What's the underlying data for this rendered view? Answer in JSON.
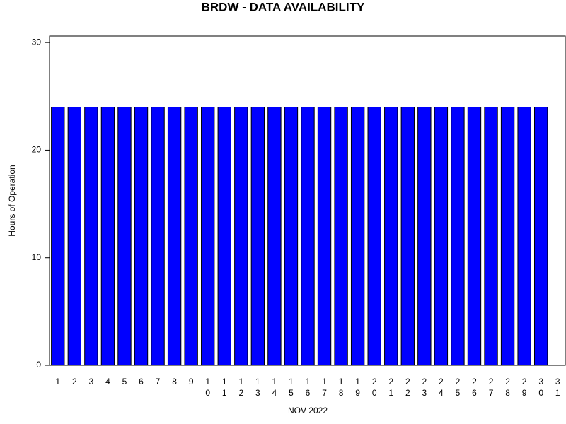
{
  "chart_data": {
    "type": "bar",
    "title": "BRDW - DATA AVAILABILITY",
    "x_label": "NOV 2022",
    "y_label": "Hours of Operation",
    "categories": [
      "1",
      "2",
      "3",
      "4",
      "5",
      "6",
      "7",
      "8",
      "9",
      "10",
      "11",
      "12",
      "13",
      "14",
      "15",
      "16",
      "17",
      "18",
      "19",
      "20",
      "21",
      "22",
      "23",
      "24",
      "25",
      "26",
      "27",
      "28",
      "29",
      "30",
      "31"
    ],
    "values": [
      24,
      24,
      24,
      24,
      24,
      24,
      24,
      24,
      24,
      24,
      24,
      24,
      24,
      24,
      24,
      24,
      24,
      24,
      24,
      24,
      24,
      24,
      24,
      24,
      24,
      24,
      24,
      24,
      24,
      24,
      null
    ],
    "color": "#0000ff",
    "reference_line": 24,
    "ylim": [
      0,
      30.6
    ],
    "yticks": [
      0,
      10,
      20,
      30
    ]
  }
}
